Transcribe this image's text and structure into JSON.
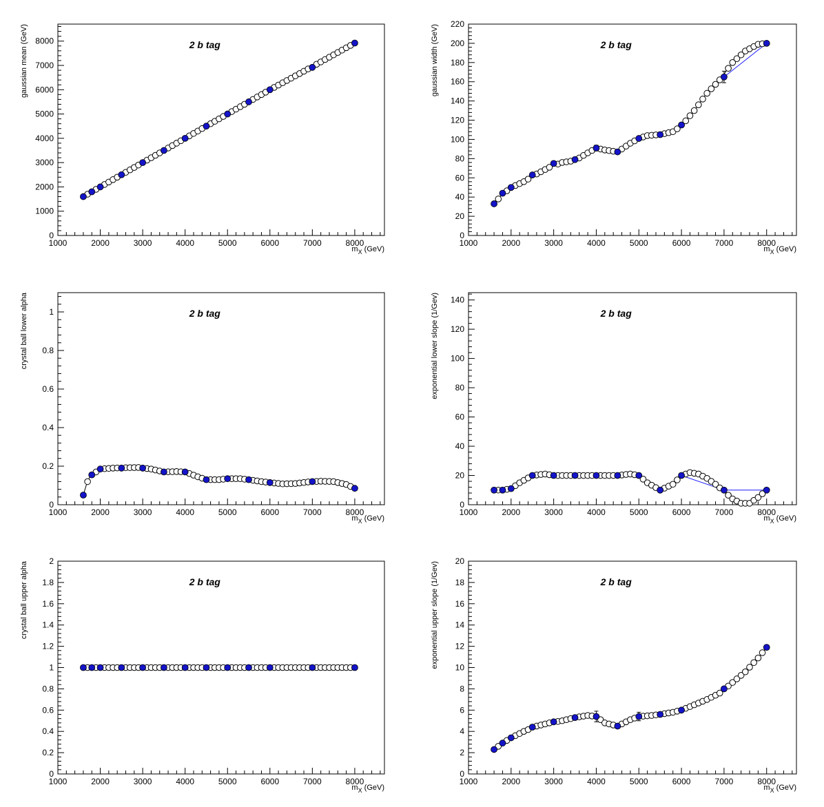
{
  "colors": {
    "filled_marker": "#1414c8",
    "fit_line": "#1a1aff",
    "open_marker_fill": "#ffffff",
    "axes": "#000000"
  },
  "chart_data": [
    {
      "type": "scatter",
      "title": "2 b tag",
      "xlabel_main": "m",
      "xlabel_sub": "X",
      "xlabel_unit": "(GeV)",
      "ylabel": "gaussian mean (GeV)",
      "xlim": [
        1000,
        8700
      ],
      "ylim": [
        0,
        8700
      ],
      "xticks": [
        1000,
        2000,
        3000,
        4000,
        5000,
        6000,
        7000,
        8000
      ],
      "yticks": [
        0,
        1000,
        2000,
        3000,
        4000,
        5000,
        6000,
        7000,
        8000
      ],
      "grid": false,
      "series": [
        {
          "kind": "filled",
          "x": [
            1600,
            1800,
            2000,
            2500,
            3000,
            3500,
            4000,
            4500,
            5000,
            5500,
            6000,
            7000,
            8000
          ],
          "y": [
            1600,
            1800,
            2000,
            2500,
            3000,
            3500,
            4000,
            4500,
            5000,
            5500,
            6000,
            6920,
            7920
          ]
        },
        {
          "kind": "curve",
          "x": [
            1600,
            2000,
            3000,
            4000,
            5000,
            6000,
            7000,
            8000
          ],
          "y": [
            1600,
            2000,
            3000,
            4000,
            5000,
            6000,
            6950,
            7920
          ]
        }
      ]
    },
    {
      "type": "scatter",
      "title": "2 b tag",
      "xlabel_main": "m",
      "xlabel_sub": "X",
      "xlabel_unit": "(GeV)",
      "ylabel": "gaussian width (GeV)",
      "xlim": [
        1000,
        8700
      ],
      "ylim": [
        0,
        220
      ],
      "xticks": [
        1000,
        2000,
        3000,
        4000,
        5000,
        6000,
        7000,
        8000
      ],
      "yticks": [
        0,
        20,
        40,
        60,
        80,
        100,
        120,
        140,
        160,
        180,
        200,
        220
      ],
      "grid": false,
      "series": [
        {
          "kind": "filled",
          "x": [
            1600,
            1800,
            2000,
            2500,
            3000,
            3500,
            4000,
            4500,
            5000,
            5500,
            6000,
            7000,
            8000
          ],
          "y": [
            33,
            44,
            50,
            63,
            75,
            79,
            91,
            87,
            101,
            105,
            115,
            165,
            200
          ]
        },
        {
          "kind": "curve",
          "x": [
            1600,
            1800,
            2000,
            2300,
            2600,
            2900,
            3200,
            3500,
            3800,
            4000,
            4200,
            4500,
            4800,
            5000,
            5200,
            5500,
            5800,
            6000,
            6300,
            6600,
            6900,
            7200,
            7500,
            7800,
            8000
          ],
          "y": [
            33,
            43,
            50,
            56,
            64,
            71,
            76,
            78,
            86,
            91,
            89,
            87,
            96,
            101,
            104,
            105,
            108,
            114,
            130,
            148,
            162,
            180,
            192,
            199,
            200
          ]
        },
        {
          "kind": "fit",
          "x": [
            7000,
            8000
          ],
          "y": [
            165,
            200
          ]
        }
      ],
      "error_bars": [
        {
          "x": 4000,
          "low": 88,
          "high": 94
        },
        {
          "x": 7000,
          "low": 159,
          "high": 171
        }
      ]
    },
    {
      "type": "scatter",
      "title": "2 b tag",
      "xlabel_main": "m",
      "xlabel_sub": "X",
      "xlabel_unit": "(GeV)",
      "ylabel": "crystal ball lower alpha",
      "xlim": [
        1000,
        8700
      ],
      "ylim": [
        0,
        1.1
      ],
      "xticks": [
        1000,
        2000,
        3000,
        4000,
        5000,
        6000,
        7000,
        8000
      ],
      "yticks": [
        0,
        0.2,
        0.4,
        0.6,
        0.8,
        1
      ],
      "grid": false,
      "series": [
        {
          "kind": "filled",
          "x": [
            1600,
            1800,
            2000,
            2500,
            3000,
            3500,
            4000,
            4500,
            5000,
            5500,
            6000,
            7000,
            8000
          ],
          "y": [
            0.05,
            0.155,
            0.185,
            0.19,
            0.19,
            0.17,
            0.17,
            0.13,
            0.135,
            0.13,
            0.115,
            0.12,
            0.085
          ]
        },
        {
          "kind": "curve",
          "x": [
            1600,
            1700,
            1800,
            2000,
            2300,
            2600,
            2900,
            3200,
            3500,
            3800,
            4000,
            4300,
            4500,
            4800,
            5000,
            5300,
            5500,
            5800,
            6000,
            6300,
            6600,
            6900,
            7200,
            7500,
            7800,
            8000
          ],
          "y": [
            0.05,
            0.12,
            0.155,
            0.185,
            0.19,
            0.192,
            0.193,
            0.185,
            0.17,
            0.172,
            0.17,
            0.145,
            0.13,
            0.13,
            0.135,
            0.135,
            0.13,
            0.12,
            0.115,
            0.108,
            0.11,
            0.118,
            0.122,
            0.12,
            0.105,
            0.085
          ]
        }
      ]
    },
    {
      "type": "scatter",
      "title": "2 b tag",
      "xlabel_main": "m",
      "xlabel_sub": "X",
      "xlabel_unit": "(GeV)",
      "ylabel": "exponential lower slope (1/Gev)",
      "xlim": [
        1000,
        8700
      ],
      "ylim": [
        0,
        145
      ],
      "xticks": [
        1000,
        2000,
        3000,
        4000,
        5000,
        6000,
        7000,
        8000
      ],
      "yticks": [
        0,
        20,
        40,
        60,
        80,
        100,
        120,
        140
      ],
      "grid": false,
      "series": [
        {
          "kind": "filled",
          "x": [
            1600,
            1800,
            2000,
            2500,
            3000,
            3500,
            4000,
            4500,
            5000,
            5500,
            6000,
            7000,
            8000
          ],
          "y": [
            10,
            10,
            11,
            20,
            20,
            20,
            20,
            20,
            20,
            10,
            20,
            10,
            10
          ]
        },
        {
          "kind": "curve",
          "x": [
            1600,
            1800,
            2000,
            2200,
            2500,
            2800,
            3000,
            3500,
            4000,
            4500,
            4800,
            5000,
            5200,
            5500,
            5800,
            6000,
            6200,
            6400,
            6600,
            6800,
            7000,
            7200,
            7400,
            7600,
            7800,
            8000
          ],
          "y": [
            10,
            10,
            11,
            15,
            20,
            21,
            20,
            20,
            20,
            20,
            21,
            20,
            15,
            10,
            14,
            20,
            22,
            21,
            18,
            14,
            9,
            4,
            1,
            1,
            5,
            10
          ]
        },
        {
          "kind": "fit",
          "x": [
            6000,
            7000,
            8000
          ],
          "y": [
            20,
            10,
            10
          ]
        }
      ]
    },
    {
      "type": "scatter",
      "title": "2 b tag",
      "xlabel_main": "m",
      "xlabel_sub": "X",
      "xlabel_unit": "(GeV)",
      "ylabel": "crystal ball upper alpha",
      "xlim": [
        1000,
        8700
      ],
      "ylim": [
        0,
        2
      ],
      "xticks": [
        1000,
        2000,
        3000,
        4000,
        5000,
        6000,
        7000,
        8000
      ],
      "yticks": [
        0,
        0.2,
        0.4,
        0.6,
        0.8,
        1,
        1.2,
        1.4,
        1.6,
        1.8,
        2
      ],
      "grid": false,
      "series": [
        {
          "kind": "filled",
          "x": [
            1600,
            1800,
            2000,
            2500,
            3000,
            3500,
            4000,
            4500,
            5000,
            5500,
            6000,
            7000,
            8000
          ],
          "y": [
            1,
            1,
            1,
            1,
            1,
            1,
            1,
            1,
            1,
            1,
            1,
            1,
            1
          ]
        },
        {
          "kind": "curve",
          "x": [
            1600,
            8000
          ],
          "y": [
            1,
            1
          ]
        }
      ]
    },
    {
      "type": "scatter",
      "title": "2 b tag",
      "xlabel_main": "m",
      "xlabel_sub": "X",
      "xlabel_unit": "(GeV)",
      "ylabel": "exponential upper slope (1/Gev)",
      "xlim": [
        1000,
        8700
      ],
      "ylim": [
        0,
        20
      ],
      "xticks": [
        1000,
        2000,
        3000,
        4000,
        5000,
        6000,
        7000,
        8000
      ],
      "yticks": [
        0,
        2,
        4,
        6,
        8,
        10,
        12,
        14,
        16,
        18,
        20
      ],
      "grid": false,
      "series": [
        {
          "kind": "filled",
          "x": [
            1600,
            1800,
            2000,
            2500,
            3000,
            3500,
            4000,
            4500,
            5000,
            5500,
            6000,
            7000,
            8000
          ],
          "y": [
            2.3,
            2.9,
            3.4,
            4.4,
            4.9,
            5.3,
            5.4,
            4.5,
            5.4,
            5.6,
            6.0,
            8.0,
            11.9
          ]
        },
        {
          "kind": "curve",
          "x": [
            1600,
            1800,
            2000,
            2300,
            2600,
            2900,
            3200,
            3500,
            3800,
            4000,
            4200,
            4500,
            4800,
            5000,
            5300,
            5500,
            5800,
            6000,
            6300,
            6600,
            6900,
            7200,
            7500,
            7800,
            8000
          ],
          "y": [
            2.3,
            2.9,
            3.4,
            4.0,
            4.5,
            4.8,
            5.0,
            5.3,
            5.5,
            5.4,
            4.8,
            4.5,
            5.1,
            5.4,
            5.5,
            5.6,
            5.8,
            6.0,
            6.5,
            7.0,
            7.6,
            8.6,
            9.6,
            10.9,
            11.9
          ]
        }
      ],
      "error_bars": [
        {
          "x": 4000,
          "low": 4.9,
          "high": 5.9
        },
        {
          "x": 5000,
          "low": 5.0,
          "high": 5.8
        }
      ]
    }
  ]
}
